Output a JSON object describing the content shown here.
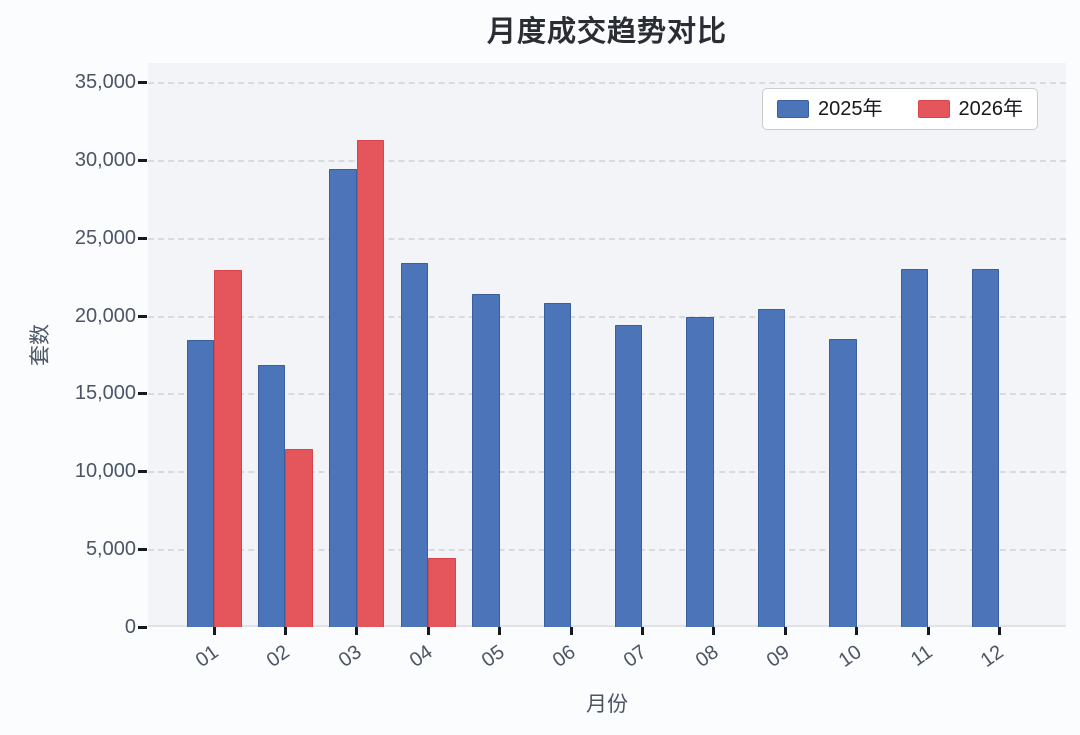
{
  "chart_data": {
    "type": "bar",
    "title": "月度成交趋势对比",
    "xlabel": "月份",
    "ylabel": "套数",
    "categories": [
      "01",
      "02",
      "03",
      "04",
      "05",
      "06",
      "07",
      "08",
      "09",
      "10",
      "11",
      "12"
    ],
    "series": [
      {
        "name": "2025年",
        "color": "#4c74b9",
        "border_color": "#3a5f9e",
        "values": [
          18400,
          16800,
          29400,
          23400,
          21400,
          20800,
          19400,
          19900,
          20400,
          18500,
          23000,
          23000
        ]
      },
      {
        "name": "2026年",
        "color": "#e4565c",
        "border_color": "#d6454b",
        "values": [
          22900,
          11400,
          31300,
          4400,
          null,
          null,
          null,
          null,
          null,
          null,
          null,
          null
        ]
      }
    ],
    "ylim": [
      0,
      35000
    ],
    "ytick_interval": 5000,
    "ytick_labels": [
      "0",
      "5,000",
      "10,000",
      "15,000",
      "20,000",
      "25,000",
      "30,000",
      "35,000"
    ],
    "grid": true,
    "grid_style": "dashed",
    "legend_position": "top-right"
  },
  "colors": {
    "figure_bg": "#fbfcfd",
    "plot_bg": "#f3f4f8",
    "grid": "#d8dade",
    "tick_text": "#4c5565",
    "title_text": "#2a2d33"
  }
}
